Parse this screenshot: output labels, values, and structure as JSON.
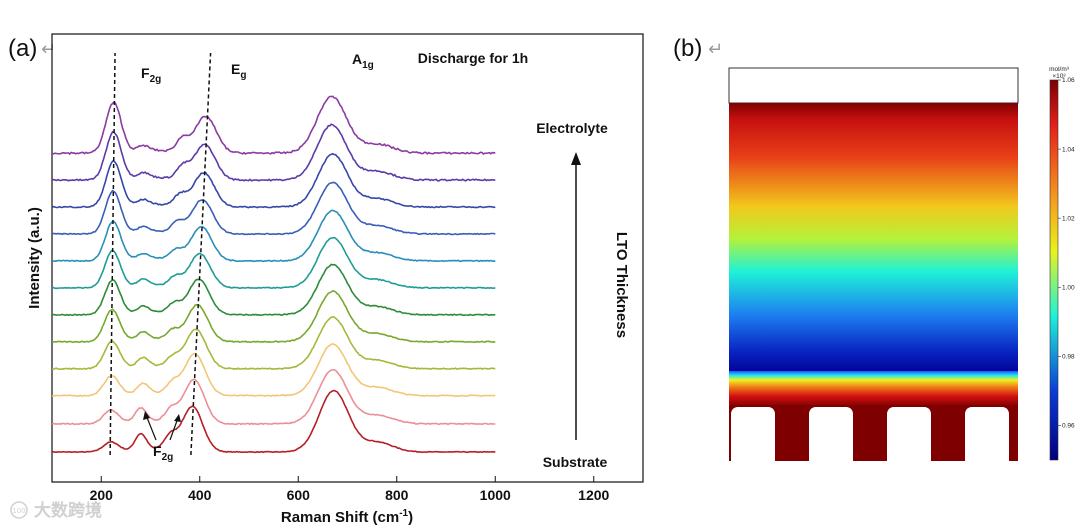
{
  "panel_a_label": "(a)",
  "panel_b_label": "(b)",
  "return_glyph": "↵",
  "watermark": "大数跨境",
  "watermark_logo": "100",
  "chart_data": [
    {
      "type": "line",
      "panel": "a",
      "title": "Discharge for 1h",
      "xlabel": "Raman Shift (cm-1)",
      "xlabel_main": "Raman Shift (cm",
      "xlabel_sup": "-1",
      "xlabel_end": ")",
      "ylabel": "Intensity (a.u.)",
      "xlim": [
        100,
        1300
      ],
      "xticks": [
        200,
        400,
        600,
        800,
        1000,
        1200
      ],
      "data_x_range": [
        100,
        1000
      ],
      "ylim": [
        0,
        14
      ],
      "series": [
        {
          "name": "Substrate",
          "color": "#b52025",
          "offset": 0.0,
          "f2g1": 220,
          "f2g1_amp": 0.4,
          "f2g2": 280,
          "f2g2_amp": 0.65,
          "f2g3": 340,
          "f2g3_amp": 0.55,
          "eg": 385,
          "eg_amp": 1.85,
          "a1g": 672,
          "a1g_amp": 2.5,
          "noise": 0.015
        },
        {
          "name": "",
          "color": "#ec8f96",
          "offset": 1.15,
          "f2g1": 220,
          "f2g1_amp": 0.55,
          "f2g2": 280,
          "f2g2_amp": 0.55,
          "f2g3": 342,
          "f2g3_amp": 0.5,
          "eg": 388,
          "eg_amp": 1.8,
          "a1g": 670,
          "a1g_amp": 2.2,
          "noise": 0.02
        },
        {
          "name": "",
          "color": "#f2c678",
          "offset": 2.3,
          "f2g1": 221,
          "f2g1_amp": 0.8,
          "f2g2": 285,
          "f2g2_amp": 0.4,
          "f2g3": 345,
          "f2g3_amp": 0.45,
          "eg": 390,
          "eg_amp": 1.7,
          "a1g": 670,
          "a1g_amp": 2.1,
          "noise": 0.02
        },
        {
          "name": "",
          "color": "#a6b83a",
          "offset": 3.4,
          "f2g1": 222,
          "f2g1_amp": 1.1,
          "f2g2": 285,
          "f2g2_amp": 0.35,
          "f2g3": 345,
          "f2g3_amp": 0.4,
          "eg": 392,
          "eg_amp": 1.6,
          "a1g": 670,
          "a1g_amp": 2.1,
          "noise": 0.02
        },
        {
          "name": "",
          "color": "#78a82e",
          "offset": 4.5,
          "f2g1": 222,
          "f2g1_amp": 1.3,
          "f2g2": 285,
          "f2g2_amp": 0.3,
          "f2g3": 345,
          "f2g3_amp": 0.4,
          "eg": 395,
          "eg_amp": 1.5,
          "a1g": 670,
          "a1g_amp": 2.05,
          "noise": 0.02
        },
        {
          "name": "",
          "color": "#2e8b3a",
          "offset": 5.6,
          "f2g1": 223,
          "f2g1_amp": 1.4,
          "f2g2": 285,
          "f2g2_amp": 0.25,
          "f2g3": 348,
          "f2g3_amp": 0.4,
          "eg": 398,
          "eg_amp": 1.45,
          "a1g": 670,
          "a1g_amp": 2.05,
          "noise": 0.02
        },
        {
          "name": "",
          "color": "#1f9c95",
          "offset": 6.7,
          "f2g1": 223,
          "f2g1_amp": 1.5,
          "f2g2": 285,
          "f2g2_amp": 0.25,
          "f2g3": 350,
          "f2g3_amp": 0.4,
          "eg": 400,
          "eg_amp": 1.4,
          "a1g": 670,
          "a1g_amp": 2.05,
          "noise": 0.02
        },
        {
          "name": "",
          "color": "#2a8fb8",
          "offset": 7.8,
          "f2g1": 224,
          "f2g1_amp": 1.6,
          "f2g2": 285,
          "f2g2_amp": 0.2,
          "f2g3": 352,
          "f2g3_amp": 0.4,
          "eg": 403,
          "eg_amp": 1.4,
          "a1g": 670,
          "a1g_amp": 2.05,
          "noise": 0.02
        },
        {
          "name": "",
          "color": "#3a5fb8",
          "offset": 8.9,
          "f2g1": 224,
          "f2g1_amp": 1.75,
          "f2g2": 285,
          "f2g2_amp": 0.2,
          "f2g3": 355,
          "f2g3_amp": 0.45,
          "eg": 405,
          "eg_amp": 1.4,
          "a1g": 670,
          "a1g_amp": 2.1,
          "noise": 0.02
        },
        {
          "name": "",
          "color": "#3548a8",
          "offset": 10.0,
          "f2g1": 225,
          "f2g1_amp": 1.85,
          "f2g2": 285,
          "f2g2_amp": 0.2,
          "f2g3": 360,
          "f2g3_amp": 0.45,
          "eg": 408,
          "eg_amp": 1.4,
          "a1g": 670,
          "a1g_amp": 2.15,
          "noise": 0.025
        },
        {
          "name": "",
          "color": "#5c3aa8",
          "offset": 11.1,
          "f2g1": 225,
          "f2g1_amp": 1.95,
          "f2g2": 285,
          "f2g2_amp": 0.2,
          "f2g3": 365,
          "f2g3_amp": 0.5,
          "eg": 410,
          "eg_amp": 1.45,
          "a1g": 668,
          "a1g_amp": 2.25,
          "noise": 0.03
        },
        {
          "name": "Electrolyte",
          "color": "#8a3ca0",
          "offset": 12.2,
          "f2g1": 225,
          "f2g1_amp": 2.05,
          "f2g2": 285,
          "f2g2_amp": 0.2,
          "f2g3": 365,
          "f2g3_amp": 0.55,
          "eg": 412,
          "eg_amp": 1.5,
          "a1g": 668,
          "a1g_amp": 2.3,
          "noise": 0.035
        }
      ],
      "dashed_guides": [
        {
          "name": "F2g-guide",
          "x_bottom": 218,
          "x_top": 228
        },
        {
          "name": "Eg-guide",
          "x_bottom": 382,
          "x_top": 422
        }
      ],
      "annotations": {
        "f2g_top": {
          "main": "F",
          "sub": "2g"
        },
        "eg_top": {
          "main": "E",
          "sub": "g"
        },
        "a1g_top": {
          "main": "A",
          "sub": "1g"
        },
        "f2g_bottom": {
          "main": "F",
          "sub": "2g"
        },
        "electrolyte": "Electrolyte",
        "substrate": "Substrate",
        "lto_thickness": "LTO Thickness"
      }
    },
    {
      "type": "heatmap",
      "panel": "b",
      "colorbar_units_line1": "mol/m³",
      "colorbar_units_line2": "×10³",
      "colorbar_ticks": [
        "1.06",
        "1.04",
        "1.02",
        "1.00",
        "0.98",
        "0.96"
      ],
      "colorbar_range": [
        0.95,
        1.06
      ],
      "colors": {
        "dark_red": "#7e0000",
        "red": "#e41f1a",
        "orange": "#f5931e",
        "yellow": "#e9f21c",
        "cyan": "#1ff2d8",
        "blue": "#0b3bd6",
        "dark_blue": "#00007d",
        "empty": "#ffffff"
      }
    }
  ]
}
